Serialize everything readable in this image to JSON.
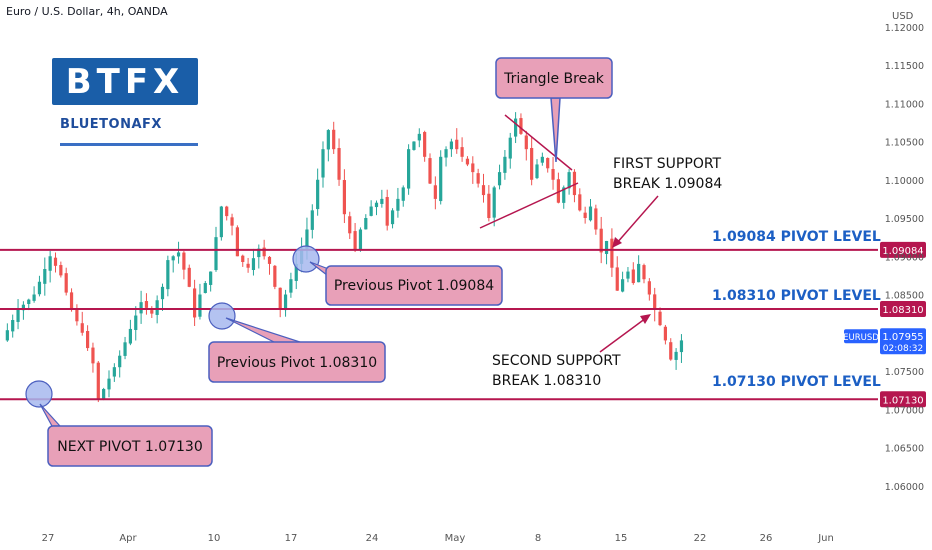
{
  "header": {
    "symbol_title": "Euro / U.S. Dollar, 4h, OANDA",
    "currency": "USD"
  },
  "logo": {
    "main": "BTFX",
    "secondary": "BLUETONAFX"
  },
  "chart_data": {
    "type": "candlestick",
    "title": "Euro / U.S. Dollar, 4h, OANDA",
    "ylabel": "USD",
    "ylim": [
      1.055,
      1.1235
    ],
    "x_tick_labels": [
      "27",
      "Apr",
      "10",
      "17",
      "24",
      "May",
      "8",
      "15",
      "22",
      "26",
      "Jun"
    ],
    "y_tick_labels": [
      "1.12000",
      "1.11500",
      "1.11000",
      "1.10500",
      "1.10000",
      "1.09500",
      "1.09000",
      "1.08500",
      "1.08000",
      "1.07500",
      "1.07000",
      "1.06500",
      "1.06000"
    ],
    "y_ticks": [
      1.12,
      1.115,
      1.11,
      1.105,
      1.1,
      1.095,
      1.09,
      1.085,
      1.08,
      1.075,
      1.07,
      1.065,
      1.06
    ],
    "close_path": [
      [
        0,
        1.079
      ],
      [
        3,
        1.083
      ],
      [
        6,
        1.085
      ],
      [
        9,
        1.09
      ],
      [
        11,
        1.0875
      ],
      [
        13,
        1.083
      ],
      [
        15,
        1.08
      ],
      [
        17,
        1.076
      ],
      [
        18,
        1.0713
      ],
      [
        20,
        1.074
      ],
      [
        22,
        1.077
      ],
      [
        24,
        1.0805
      ],
      [
        26,
        1.084
      ],
      [
        28,
        1.0825
      ],
      [
        30,
        1.086
      ],
      [
        31,
        1.0895
      ],
      [
        33,
        1.0905
      ],
      [
        35,
        1.086
      ],
      [
        36,
        1.082
      ],
      [
        37,
        1.085
      ],
      [
        39,
        1.088
      ],
      [
        40,
        1.0925
      ],
      [
        41,
        1.0965
      ],
      [
        43,
        1.094
      ],
      [
        44,
        1.09
      ],
      [
        46,
        1.0885
      ],
      [
        48,
        1.091
      ],
      [
        50,
        1.089
      ],
      [
        51,
        1.086
      ],
      [
        52,
        1.083
      ],
      [
        54,
        1.087
      ],
      [
        56,
        1.091
      ],
      [
        58,
        1.096
      ],
      [
        59,
        1.1
      ],
      [
        60,
        1.104
      ],
      [
        61,
        1.1065
      ],
      [
        62,
        1.104
      ],
      [
        63,
        1.1
      ],
      [
        64,
        1.0955
      ],
      [
        65,
        1.093
      ],
      [
        66,
        1.0908
      ],
      [
        67,
        1.0935
      ],
      [
        69,
        1.0965
      ],
      [
        71,
        1.0975
      ],
      [
        72,
        1.094
      ],
      [
        73,
        1.096
      ],
      [
        75,
        1.099
      ],
      [
        76,
        1.104
      ],
      [
        78,
        1.106
      ],
      [
        79,
        1.103
      ],
      [
        80,
        1.0995
      ],
      [
        81,
        1.0975
      ],
      [
        82,
        1.103
      ],
      [
        84,
        1.105
      ],
      [
        86,
        1.103
      ],
      [
        88,
        1.101
      ],
      [
        90,
        1.098
      ],
      [
        91,
        1.095
      ],
      [
        92,
        1.099
      ],
      [
        94,
        1.103
      ],
      [
        96,
        1.108
      ],
      [
        97,
        1.106
      ],
      [
        98,
        1.104
      ],
      [
        99,
        1.1
      ],
      [
        100,
        1.102
      ],
      [
        101,
        1.103
      ],
      [
        103,
        1.1
      ],
      [
        104,
        1.097
      ],
      [
        105,
        1.099
      ],
      [
        106,
        1.101
      ],
      [
        107,
        1.098
      ],
      [
        108,
        1.096
      ],
      [
        109,
        1.095
      ],
      [
        110,
        1.0965
      ],
      [
        111,
        1.0935
      ],
      [
        112,
        1.0905
      ],
      [
        113,
        1.092
      ],
      [
        114,
        1.0885
      ],
      [
        115,
        1.0855
      ],
      [
        116,
        1.087
      ],
      [
        117,
        1.088
      ],
      [
        118,
        1.0865
      ],
      [
        119,
        1.089
      ],
      [
        120,
        1.087
      ],
      [
        121,
        1.085
      ],
      [
        122,
        1.083
      ],
      [
        123,
        1.081
      ],
      [
        124,
        1.079
      ],
      [
        125,
        1.0765
      ],
      [
        126,
        1.0775
      ],
      [
        127,
        1.079
      ]
    ],
    "pivot_lines": [
      {
        "value": 1.09084,
        "label": "1.09084 PIVOT LEVEL",
        "tag": "1.09084"
      },
      {
        "value": 1.0831,
        "label": "1.08310 PIVOT LEVEL",
        "tag": "1.08310"
      },
      {
        "value": 1.0713,
        "label": "1.07130 PIVOT LEVEL",
        "tag": "1.07130"
      }
    ],
    "current_price": {
      "symbol": "EURUSD",
      "price": "1.07955",
      "countdown": "02:08:32",
      "value": 1.07955
    },
    "annotations": {
      "triangle_break": "Triangle Break",
      "first_support_line1": "FIRST SUPPORT",
      "first_support_line2": "BREAK 1.09084",
      "second_support_line1": "SECOND SUPPORT",
      "second_support_line2": "BREAK 1.08310",
      "prev_pivot_1": "Previous Pivot 1.09084",
      "prev_pivot_2": "Previous Pivot 1.08310",
      "next_pivot": "NEXT PIVOT 1.07130"
    }
  },
  "colors": {
    "bull": "#26a69a",
    "bear": "#ef5350",
    "pivot_line": "#b5164f",
    "pivot_label": "#1c5fc4",
    "callout_fill": "#e8a0b8",
    "callout_border": "#4b5fbf",
    "circle_fill": "#a7b8ef",
    "price_tag_blue": "#2962ff",
    "axis_text": "#555555"
  }
}
